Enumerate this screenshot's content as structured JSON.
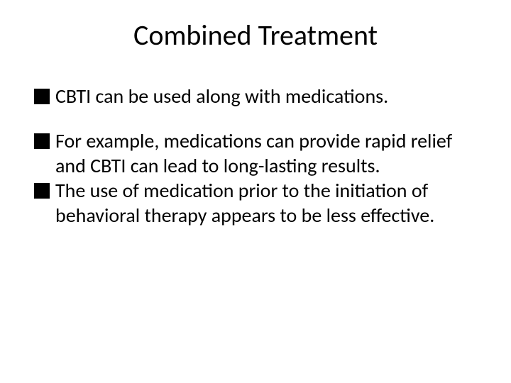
{
  "slide": {
    "title": "Combined Treatment",
    "title_fontsize": 40,
    "background_color": "#ffffff",
    "text_color": "#000000",
    "bullet_marker_color": "#000000",
    "bullet_marker_size": 22,
    "body_fontsize": 28,
    "groups": [
      {
        "items": [
          {
            "text": "CBTI can be used along with medications."
          }
        ]
      },
      {
        "items": [
          {
            "text": "For example, medications can provide rapid relief and CBTI can lead to long-lasting results."
          },
          {
            "text": "The use of medication prior to the initiation of behavioral therapy appears to be less effective."
          }
        ]
      }
    ]
  }
}
